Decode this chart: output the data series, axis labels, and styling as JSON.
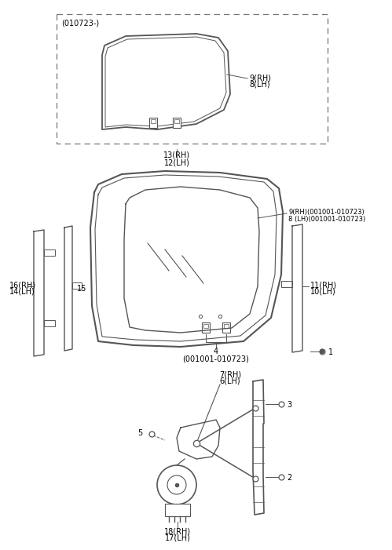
{
  "background_color": "#ffffff",
  "line_color": "#555555",
  "text_color": "#000000",
  "labels": {
    "dashed_box_label": "(010723-)",
    "label_9rh_top": "9(RH)",
    "label_8lh_top": "8(LH)",
    "label_13rh": "13(RH)",
    "label_12lh": "12(LH)",
    "label_9rh_mid": "9(RH)(001001-010723)",
    "label_8lh_mid": "8 (LH)(001001-010723)",
    "label_4": "4",
    "label_4sub": "(001001-010723)",
    "label_16rh": "16(RH)",
    "label_14lh": "14(LH)",
    "label_15": "15",
    "label_11rh": "11(RH)",
    "label_10lh": "10(LH)",
    "label_1": "1",
    "label_7rh": "7(RH)",
    "label_6lh": "6(LH)",
    "label_5": "5",
    "label_3": "3",
    "label_2": "2",
    "label_18rh": "18(RH)",
    "label_17lh": "17(LH)"
  }
}
